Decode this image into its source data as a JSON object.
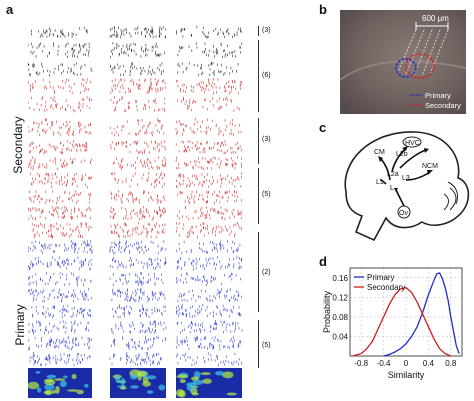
{
  "panel_labels": {
    "a": "a",
    "b": "b",
    "c": "c",
    "d": "d"
  },
  "panel_a": {
    "secondary_label": "Secondary",
    "primary_label": "Primary",
    "group_counts": [
      "(3)",
      "(6)",
      "(3)",
      "(5)",
      "(2)",
      "(5)"
    ],
    "raster_colors": {
      "black": "#222222",
      "red": "#d42a2a",
      "blue": "#2a3bd0"
    }
  },
  "panel_b": {
    "scale_label": "600 μm",
    "legend": {
      "primary": "Primary",
      "secondary": "Secondary"
    },
    "colors": {
      "primary": "#1f2fc8",
      "secondary": "#d21f1f"
    }
  },
  "panel_c": {
    "regions": [
      "HVC",
      "CM",
      "L2b",
      "L2a",
      "L3",
      "NCM",
      "L1",
      "L",
      "Ov"
    ]
  },
  "chart_data": {
    "type": "line",
    "title": "",
    "xlabel": "Similarity",
    "ylabel": "Probability",
    "xlim": [
      -1,
      1
    ],
    "ylim": [
      0,
      0.18
    ],
    "xticks": [
      "-0.8",
      "-0.4",
      "0",
      "0.4",
      "0.8"
    ],
    "yticks": [
      "0.04",
      "0.08",
      "0.12",
      "0.16"
    ],
    "grid": true,
    "legend_position": "top-left",
    "series": [
      {
        "name": "Primary",
        "color": "#1f2fc8",
        "x": [
          -0.4,
          -0.3,
          -0.2,
          -0.1,
          0,
          0.1,
          0.2,
          0.3,
          0.4,
          0.5,
          0.55,
          0.6,
          0.65,
          0.7,
          0.75,
          0.8,
          0.85,
          0.9,
          0.95
        ],
        "y": [
          0.0,
          0.003,
          0.008,
          0.015,
          0.025,
          0.04,
          0.06,
          0.09,
          0.125,
          0.155,
          0.168,
          0.17,
          0.158,
          0.14,
          0.115,
          0.08,
          0.05,
          0.02,
          0.005
        ]
      },
      {
        "name": "Secondary",
        "color": "#d21f1f",
        "x": [
          -0.95,
          -0.8,
          -0.7,
          -0.6,
          -0.5,
          -0.4,
          -0.3,
          -0.2,
          -0.1,
          0,
          0.1,
          0.2,
          0.3,
          0.4,
          0.5,
          0.6,
          0.7,
          0.8
        ],
        "y": [
          0.0,
          0.005,
          0.015,
          0.03,
          0.055,
          0.08,
          0.105,
          0.125,
          0.137,
          0.14,
          0.13,
          0.11,
          0.085,
          0.06,
          0.035,
          0.015,
          0.005,
          0.0
        ]
      }
    ]
  }
}
